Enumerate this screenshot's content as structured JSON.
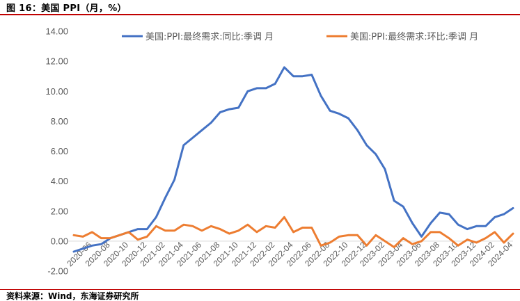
{
  "figure": {
    "title": "图 16：美国 PPI（月，%）",
    "source": "资料来源：Wind，东海证券研究所"
  },
  "chart_data": {
    "type": "line",
    "title": "",
    "xlabel": "",
    "ylabel": "",
    "ylim": [
      -2.0,
      14.0
    ],
    "yticks": [
      "-2.00",
      "0.00",
      "2.00",
      "4.00",
      "6.00",
      "8.00",
      "10.00",
      "12.00",
      "14.00"
    ],
    "grid": false,
    "legend_position": "top",
    "x": [
      "2020-04",
      "2020-05",
      "2020-06",
      "2020-07",
      "2020-08",
      "2020-09",
      "2020-10",
      "2020-11",
      "2020-12",
      "2021-01",
      "2021-02",
      "2021-03",
      "2021-04",
      "2021-05",
      "2021-06",
      "2021-07",
      "2021-08",
      "2021-09",
      "2021-10",
      "2021-11",
      "2021-12",
      "2022-01",
      "2022-02",
      "2022-03",
      "2022-04",
      "2022-05",
      "2022-06",
      "2022-07",
      "2022-08",
      "2022-09",
      "2022-10",
      "2022-11",
      "2022-12",
      "2023-01",
      "2023-02",
      "2023-03",
      "2023-04",
      "2023-05",
      "2023-06",
      "2023-07",
      "2023-08",
      "2023-09",
      "2023-10",
      "2023-11",
      "2023-12",
      "2024-01",
      "2024-02",
      "2024-03",
      "2024-04"
    ],
    "xtick_labels": [
      "2020-06",
      "2020-08",
      "2020-10",
      "2020-12",
      "2021-02",
      "2021-04",
      "2021-06",
      "2021-08",
      "2021-10",
      "2021-12",
      "2022-02",
      "2022-04",
      "2022-06",
      "2022-08",
      "2022-10",
      "2022-12",
      "2023-02",
      "2023-04",
      "2023-06",
      "2023-08",
      "2023-10",
      "2023-12",
      "2024-02",
      "2024-04"
    ],
    "series": [
      {
        "name": "美国:PPI:最终需求:同比:季调 月",
        "color": "#4472c4",
        "values": [
          -0.7,
          -0.5,
          -0.3,
          -0.2,
          0.2,
          0.4,
          0.6,
          0.8,
          0.8,
          1.6,
          2.9,
          4.1,
          6.4,
          6.9,
          7.4,
          7.9,
          8.6,
          8.8,
          8.9,
          10.0,
          10.2,
          10.2,
          10.5,
          11.6,
          11.0,
          11.0,
          11.1,
          9.7,
          8.7,
          8.5,
          8.2,
          7.4,
          6.4,
          5.8,
          4.8,
          2.7,
          2.3,
          1.2,
          0.3,
          1.2,
          1.9,
          1.8,
          1.1,
          0.8,
          1.0,
          1.0,
          1.6,
          1.8,
          2.2
        ]
      },
      {
        "name": "美国:PPI:最终需求:环比:季调 月",
        "color": "#ed7d31",
        "values": [
          0.4,
          0.3,
          0.6,
          0.2,
          0.2,
          0.4,
          0.6,
          0.1,
          0.3,
          1.0,
          0.7,
          0.7,
          1.1,
          1.0,
          0.7,
          1.0,
          0.8,
          0.5,
          0.7,
          1.1,
          0.6,
          1.0,
          0.9,
          1.6,
          0.6,
          0.9,
          0.9,
          -0.3,
          -0.1,
          0.3,
          0.4,
          0.4,
          -0.3,
          0.4,
          0.0,
          -0.4,
          0.2,
          -0.2,
          0.0,
          0.6,
          0.6,
          0.2,
          -0.3,
          0.1,
          -0.1,
          0.2,
          0.6,
          -0.1,
          0.5
        ]
      }
    ]
  }
}
